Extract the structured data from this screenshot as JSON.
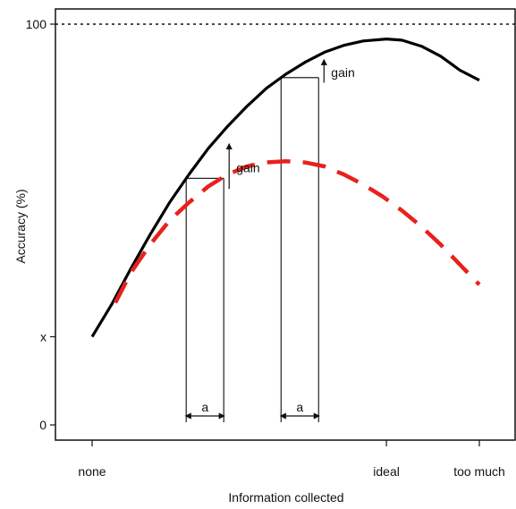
{
  "chart_data": {
    "type": "line",
    "title": "",
    "xlabel": "Information collected",
    "ylabel": "Accuracy (%)",
    "x_ticks": [
      {
        "x": 0,
        "label": "none"
      },
      {
        "x": 0.76,
        "label": "ideal"
      },
      {
        "x": 1,
        "label": "too much"
      }
    ],
    "y_ticks": [
      {
        "y": 0,
        "label": "0"
      },
      {
        "y": 22,
        "label": "x"
      },
      {
        "y": 100,
        "label": "100"
      }
    ],
    "xlim": [
      0,
      1
    ],
    "ylim": [
      0,
      100
    ],
    "grid": false,
    "reference_line": {
      "y": 100,
      "style": "dotted"
    },
    "series": [
      {
        "color": "#000000",
        "style": "solid",
        "points": [
          [
            0,
            22
          ],
          [
            0.05,
            30
          ],
          [
            0.1,
            39
          ],
          [
            0.15,
            47.5
          ],
          [
            0.2,
            55.5
          ],
          [
            0.25,
            62.5
          ],
          [
            0.3,
            69
          ],
          [
            0.35,
            74.5
          ],
          [
            0.4,
            79.5
          ],
          [
            0.45,
            84
          ],
          [
            0.5,
            87.5
          ],
          [
            0.55,
            90.5
          ],
          [
            0.6,
            93
          ],
          [
            0.65,
            94.7
          ],
          [
            0.7,
            95.8
          ],
          [
            0.76,
            96.3
          ],
          [
            0.8,
            96
          ],
          [
            0.85,
            94.5
          ],
          [
            0.9,
            92
          ],
          [
            0.95,
            88.5
          ],
          [
            1,
            86
          ]
        ]
      },
      {
        "color": "#e8211c",
        "style": "dashed",
        "points": [
          [
            0.06,
            30.5
          ],
          [
            0.1,
            38
          ],
          [
            0.15,
            45
          ],
          [
            0.2,
            51
          ],
          [
            0.25,
            55.5
          ],
          [
            0.3,
            59.5
          ],
          [
            0.35,
            62.5
          ],
          [
            0.4,
            64.5
          ],
          [
            0.45,
            65.5
          ],
          [
            0.5,
            65.8
          ],
          [
            0.55,
            65.5
          ],
          [
            0.6,
            64.5
          ],
          [
            0.65,
            62.5
          ],
          [
            0.7,
            60
          ],
          [
            0.75,
            57
          ],
          [
            0.8,
            53.5
          ],
          [
            0.85,
            49.5
          ],
          [
            0.9,
            45
          ],
          [
            0.95,
            40
          ],
          [
            1,
            35
          ]
        ]
      }
    ],
    "annotations": {
      "intervals": [
        {
          "x_start": 0.243,
          "x_end": 0.34,
          "label": "a"
        },
        {
          "x_start": 0.488,
          "x_end": 0.585,
          "label": "a"
        }
      ],
      "gains": [
        {
          "x": 0.34,
          "y_from": 58,
          "y_to": 70,
          "label": "gain"
        },
        {
          "x": 0.585,
          "y_from": 84.5,
          "y_to": 91,
          "label": "gain"
        }
      ]
    }
  }
}
